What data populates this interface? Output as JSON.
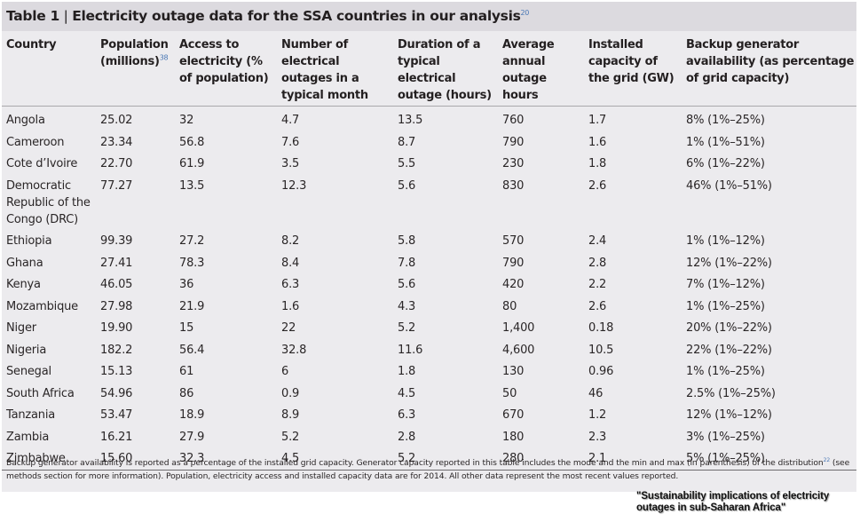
{
  "table": {
    "label": "Table 1",
    "separator": " | ",
    "title": "Electricity outage data for the SSA countries in our analysis",
    "title_ref": "20",
    "columns": [
      {
        "label": "Country",
        "ref": ""
      },
      {
        "label": "Population (millions)",
        "ref": "38"
      },
      {
        "label": "Access to electricity (% of population)",
        "ref": ""
      },
      {
        "label": "Number of electrical outages in a typical month",
        "ref": ""
      },
      {
        "label": "Duration of a typical electrical outage (hours)",
        "ref": ""
      },
      {
        "label": "Average annual outage hours",
        "ref": ""
      },
      {
        "label": "Installed capacity of the grid (GW)",
        "ref": ""
      },
      {
        "label": "Backup generator availability (as percentage of grid capacity)",
        "ref": ""
      }
    ],
    "rows": [
      [
        "Angola",
        "25.02",
        "32",
        "4.7",
        "13.5",
        "760",
        "1.7",
        "8% (1%–25%)"
      ],
      [
        "Cameroon",
        "23.34",
        "56.8",
        "7.6",
        "8.7",
        "790",
        "1.6",
        "1% (1%–51%)"
      ],
      [
        "Cote d’Ivoire",
        "22.70",
        "61.9",
        "3.5",
        "5.5",
        "230",
        "1.8",
        "6% (1%–22%)"
      ],
      [
        "Democratic Republic of the Congo (DRC)",
        "77.27",
        "13.5",
        "12.3",
        "5.6",
        "830",
        "2.6",
        "46% (1%–51%)"
      ],
      [
        "Ethiopia",
        "99.39",
        "27.2",
        "8.2",
        "5.8",
        "570",
        "2.4",
        "1% (1%–12%)"
      ],
      [
        "Ghana",
        "27.41",
        "78.3",
        "8.4",
        "7.8",
        "790",
        "2.8",
        "12% (1%–22%)"
      ],
      [
        "Kenya",
        "46.05",
        "36",
        "6.3",
        "5.6",
        "420",
        "2.2",
        "7% (1%–12%)"
      ],
      [
        "Mozambique",
        "27.98",
        "21.9",
        "1.6",
        "4.3",
        "80",
        "2.6",
        "1% (1%–25%)"
      ],
      [
        "Niger",
        "19.90",
        "15",
        "22",
        "5.2",
        "1,400",
        "0.18",
        "20% (1%–22%)"
      ],
      [
        "Nigeria",
        "182.2",
        "56.4",
        "32.8",
        "11.6",
        "4,600",
        "10.5",
        "22% (1%–22%)"
      ],
      [
        "Senegal",
        "15.13",
        "61",
        "6",
        "1.8",
        "130",
        "0.96",
        "1% (1%–25%)"
      ],
      [
        "South Africa",
        "54.96",
        "86",
        "0.9",
        "4.5",
        "50",
        "46",
        "2.5% (1%–25%)"
      ],
      [
        "Tanzania",
        "53.47",
        "18.9",
        "8.9",
        "6.3",
        "670",
        "1.2",
        "12% (1%–12%)"
      ],
      [
        "Zambia",
        "16.21",
        "27.9",
        "5.2",
        "2.8",
        "180",
        "2.3",
        "3% (1%–25%)"
      ],
      [
        "Zimbabwe",
        "15.60",
        "32.3",
        "4.5",
        "5.2",
        "280",
        "2.1",
        "5% (1%–25%)"
      ]
    ],
    "footnote_part1": "Backup generator availability is reported as a percentage of the installed grid capacity. Generator capacity reported in this table includes the mode and the min and max (in parenthesis) of the distribution",
    "footnote_ref": "22",
    "footnote_part2": " (see methods section for more information). Population, electricity access and installed capacity data are for 2014. All other data represent the most recent values reported."
  },
  "caption": {
    "line1": "\"Sustainability implications of electricity",
    "line2": "outages in sub-Saharan Africa\""
  },
  "colors": {
    "title_bar_bg": "#dcdadf",
    "table_bg": "#ecebee",
    "reference_link": "#4a78b5"
  }
}
